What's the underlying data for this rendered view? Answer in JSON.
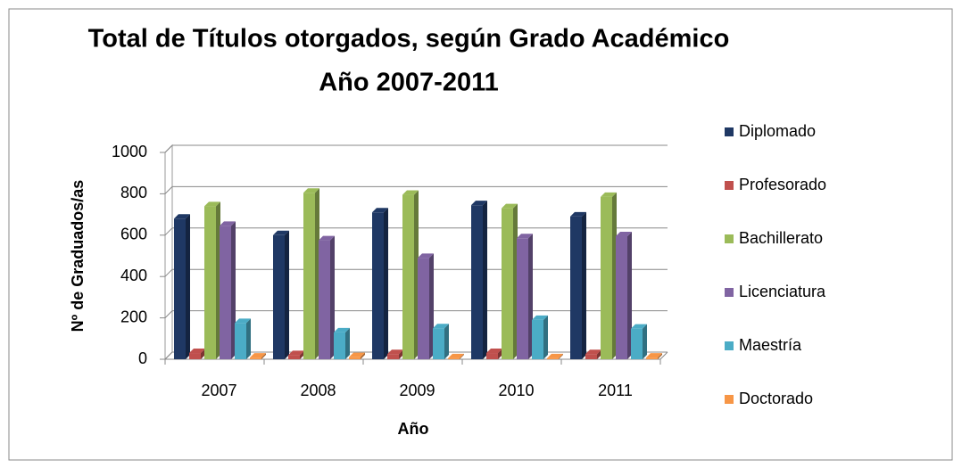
{
  "chart_data": {
    "type": "bar3d",
    "title": [
      "Total de Títulos otorgados, según Grado Académico",
      "Año 2007-2011"
    ],
    "x_label": "Año",
    "y_label": "Nº de Graduados/as",
    "categories": [
      "2007",
      "2008",
      "2009",
      "2010",
      "2011"
    ],
    "series": [
      {
        "name": "Diplomado",
        "color": "#1f3864",
        "values": [
          680,
          600,
          710,
          745,
          690
        ]
      },
      {
        "name": "Profesorado",
        "color": "#c0504d",
        "values": [
          30,
          20,
          25,
          30,
          25
        ]
      },
      {
        "name": "Bachillerato",
        "color": "#9bbb59",
        "values": [
          740,
          805,
          795,
          730,
          785
        ]
      },
      {
        "name": "Licenciatura",
        "color": "#8064a2",
        "values": [
          645,
          575,
          490,
          585,
          595
        ]
      },
      {
        "name": "Maestría",
        "color": "#4bacc6",
        "values": [
          175,
          130,
          150,
          190,
          148
        ]
      },
      {
        "name": "Doctorado",
        "color": "#f79646",
        "values": [
          8,
          10,
          5,
          5,
          8
        ]
      }
    ],
    "ylim": [
      0,
      1000
    ],
    "yticks": [
      0,
      200,
      400,
      600,
      800,
      1000
    ],
    "grid": true,
    "legend": "right"
  }
}
